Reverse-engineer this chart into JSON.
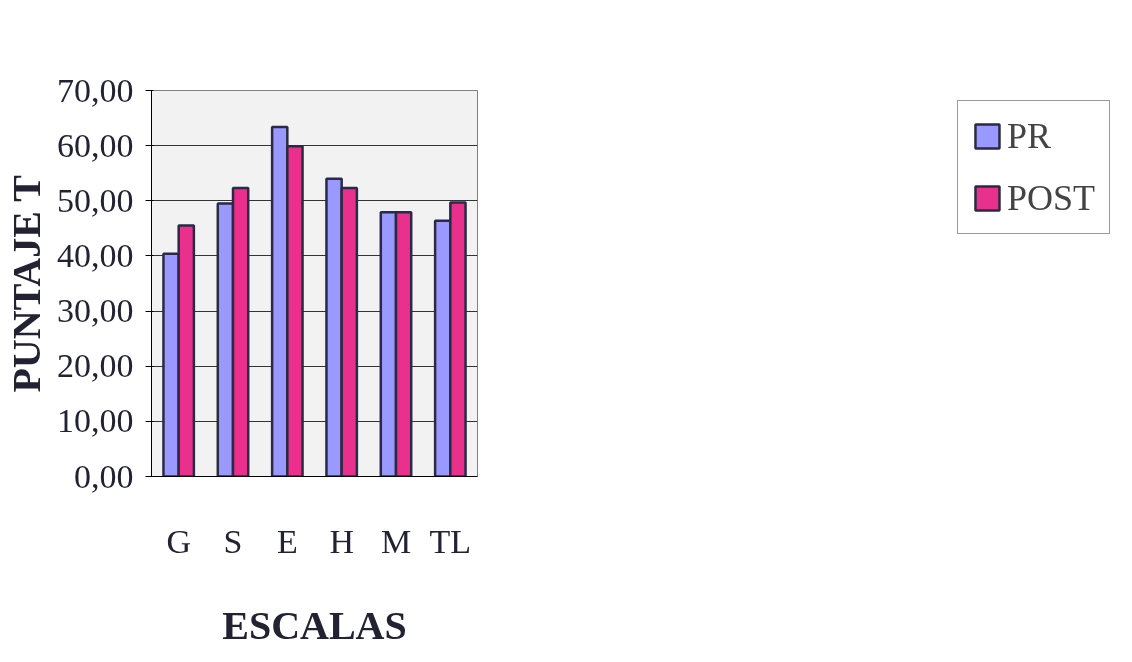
{
  "chart_data": {
    "type": "bar",
    "xlabel": "ESCALAS",
    "ylabel": "PUNTAJE T",
    "categories": [
      "G",
      "S",
      "E",
      "H",
      "M",
      "TL"
    ],
    "series": [
      {
        "name": "PR",
        "color": "#9999ff",
        "values": [
          40.4,
          49.5,
          63.4,
          54.0,
          47.9,
          46.4
        ]
      },
      {
        "name": "POST",
        "color": "#e8308c",
        "values": [
          45.5,
          52.3,
          59.9,
          52.3,
          47.9,
          49.7
        ]
      }
    ],
    "ylim": [
      0,
      70
    ],
    "yticks": [
      {
        "value": 0,
        "label": "0,00"
      },
      {
        "value": 10,
        "label": "10,00"
      },
      {
        "value": 20,
        "label": "20,00"
      },
      {
        "value": 30,
        "label": "30,00"
      },
      {
        "value": 40,
        "label": "40,00"
      },
      {
        "value": 50,
        "label": "50,00"
      },
      {
        "value": 60,
        "label": "60,00"
      },
      {
        "value": 70,
        "label": "70,00"
      }
    ],
    "grid": "y",
    "legend": "right"
  }
}
